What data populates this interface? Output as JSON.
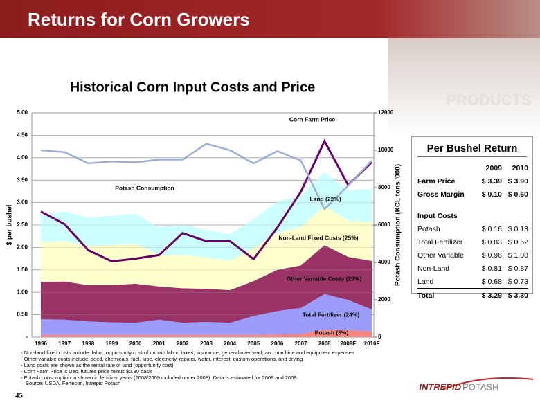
{
  "header": {
    "title": "Returns for Corn Growers",
    "image_text": "PRODUCTS"
  },
  "chart_data": {
    "type": "stacked_area",
    "title": "Historical Corn Input Costs and Price",
    "ylabel": "$ per bushel",
    "y2label": "Potash Consumption (KCL tons '000)",
    "categories": [
      "1996",
      "1997",
      "1998",
      "1999",
      "2000",
      "2001",
      "2002",
      "2003",
      "2004",
      "2005",
      "2006",
      "2007",
      "2008",
      "2009F",
      "2010F"
    ],
    "ylim": [
      0,
      5
    ],
    "yticks": [
      {
        "value": 0,
        "label": "-"
      },
      {
        "value": 0.5,
        "label": "0.50"
      },
      {
        "value": 1,
        "label": "1.00"
      },
      {
        "value": 1.5,
        "label": "1.50"
      },
      {
        "value": 2,
        "label": "2.00"
      },
      {
        "value": 2.5,
        "label": "2.50"
      },
      {
        "value": 3,
        "label": "3.00"
      },
      {
        "value": 3.5,
        "label": "3.50"
      },
      {
        "value": 4,
        "label": "4.00"
      },
      {
        "value": 4.5,
        "label": "4.50"
      },
      {
        "value": 5,
        "label": "5.00"
      }
    ],
    "y2lim": [
      0,
      12000
    ],
    "y2ticks": [
      0,
      2000,
      4000,
      6000,
      8000,
      10000,
      12000
    ],
    "grid": true,
    "series": [
      {
        "name": "Potash (5%)",
        "type": "area",
        "color": "#f4847c",
        "values": [
          0.05,
          0.05,
          0.05,
          0.05,
          0.05,
          0.05,
          0.05,
          0.05,
          0.05,
          0.05,
          0.06,
          0.07,
          0.17,
          0.16,
          0.13
        ]
      },
      {
        "name": "Total Fertilizer (24%)",
        "type": "area",
        "color": "#9c9cfc",
        "values": [
          0.35,
          0.34,
          0.3,
          0.28,
          0.27,
          0.34,
          0.27,
          0.29,
          0.27,
          0.42,
          0.52,
          0.58,
          0.79,
          0.67,
          0.49
        ]
      },
      {
        "name": "Other Variable Costs (29%)",
        "type": "area",
        "color": "#993366",
        "values": [
          0.83,
          0.85,
          0.81,
          0.83,
          0.87,
          0.74,
          0.77,
          0.74,
          0.73,
          0.78,
          0.92,
          0.95,
          1.09,
          0.96,
          1.08
        ]
      },
      {
        "name": "Non-Land Fixed Costs (25%)",
        "type": "area",
        "color": "#ffffcc",
        "values": [
          0.89,
          0.9,
          0.87,
          0.89,
          0.9,
          0.7,
          0.75,
          0.7,
          0.65,
          0.73,
          0.82,
          0.85,
          0.87,
          0.81,
          0.87
        ]
      },
      {
        "name": "Land (22%)",
        "type": "area",
        "color": "#ccffff",
        "values": [
          0.6,
          0.66,
          0.64,
          0.65,
          0.66,
          0.62,
          0.66,
          0.6,
          0.6,
          0.65,
          0.7,
          0.7,
          0.75,
          0.68,
          0.73
        ]
      },
      {
        "name": "Corn Farm Price",
        "type": "line",
        "color": "#660066",
        "values": [
          2.8,
          2.52,
          1.94,
          1.69,
          1.75,
          1.83,
          2.32,
          2.14,
          2.14,
          1.74,
          2.44,
          3.24,
          4.37,
          3.39,
          3.9
        ]
      },
      {
        "name": "Potash Consumption",
        "type": "line",
        "axis": "y2",
        "color": "#9aaed6",
        "values": [
          10000,
          9900,
          9300,
          9400,
          9350,
          9500,
          9500,
          10350,
          10000,
          9300,
          9950,
          9450,
          6850,
          8100,
          9450
        ]
      }
    ]
  },
  "table": {
    "title": "Per Bushel Return",
    "columns": [
      "2009",
      "2010"
    ],
    "rows": [
      {
        "label": "Farm Price",
        "bold": true,
        "values": [
          "$ 3.39",
          "$ 3.90"
        ]
      },
      {
        "label": "Gross Margin",
        "bold": true,
        "values": [
          "$ 0.10",
          "$ 0.60"
        ]
      },
      {
        "label": "Input Costs"
      },
      {
        "label": "Potash",
        "values": [
          "$ 0.16",
          "$ 0.13"
        ]
      },
      {
        "label": "Total Fertilizer",
        "values": [
          "$ 0.83",
          "$ 0.62"
        ]
      },
      {
        "label": "Other Variable",
        "values": [
          "$ 0.96",
          "$ 1.08"
        ]
      },
      {
        "label": "Non-Land",
        "values": [
          "$ 0.81",
          "$ 0.87"
        ]
      },
      {
        "label": "Land",
        "values": [
          "$ 0.68",
          "$ 0.73"
        ]
      },
      {
        "label": "Total",
        "bold": true,
        "values": [
          "$ 3.29",
          "$ 3.30"
        ]
      }
    ]
  },
  "footnotes": [
    "- Non-land fixed costs include: labor, opportunity cost of unpaid labor, taxes, insurance, general overhead, and machine and equipment expenses",
    "- Other variable costs include: seed, chemicals, fuel, lube, electricity, repairs, water, interest, custom operations, and drying",
    "- Land costs are shown as the rental rate of land (opportunity cost)",
    "- Corn Farm Price is Dec. futures price minus $0.30 basis",
    "- Potash consumption in shown in fertilizer years (2008/2009 included under 2008). Data is estimated for 2008 and 2009"
  ],
  "source": "Source: USDA, Fertecon, Intrepid Potash",
  "page_number": "45",
  "logo": [
    "INTREPID",
    "POTASH"
  ]
}
